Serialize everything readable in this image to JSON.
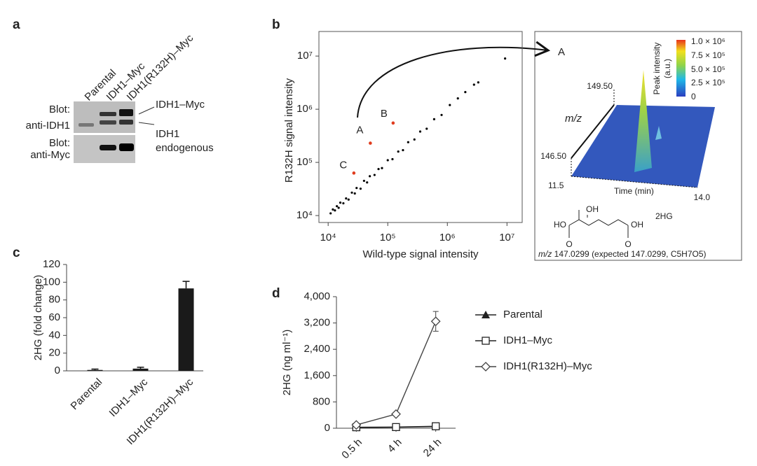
{
  "panel_labels": [
    "a",
    "b",
    "c",
    "d"
  ],
  "blot": {
    "lanes": [
      "Parental",
      "IDH1–Myc",
      "IDH1(R132H)–Myc"
    ],
    "rows": [
      [
        "Blot:",
        "anti-IDH1"
      ],
      [
        "Blot:",
        "anti-Myc"
      ]
    ],
    "bands": [
      [
        "IDH1–Myc"
      ],
      [
        "IDH1",
        "endogenous"
      ]
    ]
  },
  "spectrum": {
    "target": "A",
    "colorbar_title": [
      "Peak intensity",
      "(a.u.)"
    ],
    "colorbar_ticks": [
      "1.0 × 10⁶",
      "7.5 × 10⁵",
      "5.0 × 10⁵",
      "2.5 × 10⁵",
      "0"
    ],
    "mz_axis": [
      "149.50",
      "m/z",
      "146.50"
    ],
    "time_axis": [
      "11.5",
      "Time (min)",
      "14.0"
    ],
    "structure": [
      "HO",
      "OH",
      "OH",
      "O",
      "O",
      "2HG"
    ],
    "caption": [
      "m/z",
      " 147.0299 (expected 147.0299, C5H7O5)"
    ]
  },
  "chart_data": [
    {
      "type": "scatter",
      "xlabel": "Wild-type signal intensity",
      "ylabel": "R132H signal intensity",
      "xscale": "log",
      "yscale": "log",
      "xlim": [
        7000,
        18000000
      ],
      "ylim": [
        7400,
        29000000
      ],
      "xticks": [
        {
          "value": 10000,
          "label": "10⁴"
        },
        {
          "value": 100000,
          "label": "10⁵"
        },
        {
          "value": 1000000,
          "label": "10⁶"
        },
        {
          "value": 10000000,
          "label": "10⁷"
        }
      ],
      "yticks": [
        {
          "value": 10000,
          "label": "10⁴"
        },
        {
          "value": 100000,
          "label": "10⁵"
        },
        {
          "value": 1000000,
          "label": "10⁶"
        },
        {
          "value": 10000000,
          "label": "10⁷"
        }
      ],
      "series": [
        {
          "color": "#000000",
          "x": [
            11000,
            12000,
            13000,
            14000,
            15000,
            16000,
            18000,
            20000,
            22000,
            25000,
            28000,
            30000,
            35000,
            40000,
            45000,
            50000,
            60000,
            70000,
            80000,
            100000,
            120000,
            150000,
            180000,
            220000,
            280000,
            350000,
            450000,
            600000,
            800000,
            1100000,
            1500000,
            2000000,
            2800000,
            3300000,
            9300000
          ],
          "values": [
            11000,
            13000,
            12500,
            15000,
            14000,
            17500,
            17000,
            21000,
            20000,
            27000,
            26000,
            33000,
            32000,
            45000,
            42000,
            55000,
            58000,
            75000,
            78000,
            110000,
            115000,
            160000,
            170000,
            240000,
            270000,
            380000,
            430000,
            650000,
            780000,
            1200000,
            1600000,
            2100000,
            2900000,
            3200000,
            9000000
          ]
        },
        {
          "color": "#e03c1e",
          "x": [
            51000,
            123000,
            27000
          ],
          "values": [
            230000,
            550000,
            63000
          ],
          "labels": [
            "A",
            "B",
            "C"
          ]
        }
      ]
    },
    {
      "type": "bar",
      "categories": [
        "Parental",
        "IDH1–Myc",
        "IDH1(R132H)–Myc"
      ],
      "values": [
        1,
        2.5,
        93
      ],
      "errors": [
        1,
        1.5,
        8
      ],
      "color": "#1a1a1a",
      "ylabel": "2HG (fold change)",
      "ylim": [
        0,
        120
      ],
      "yticks": [
        0,
        20,
        40,
        60,
        80,
        100,
        120
      ]
    },
    {
      "type": "line",
      "categories": [
        "0.5 h",
        "4 h",
        "24 h"
      ],
      "ylabel": "2HG (ng ml⁻¹)",
      "ylim": [
        0,
        4000
      ],
      "yticks": [
        0,
        800,
        {
          "value": 1600,
          "label": "1,600"
        },
        {
          "value": 2400,
          "label": "2,400"
        },
        {
          "value": 3200,
          "label": "3,200"
        },
        {
          "value": 4000,
          "label": "4,000"
        }
      ],
      "series": [
        {
          "name": "Parental",
          "color": "#222222",
          "marker": "triangle",
          "values": [
            20,
            30,
            50
          ]
        },
        {
          "name": "IDH1–Myc",
          "color": "#222222",
          "marker": "square",
          "values": [
            30,
            35,
            60
          ]
        },
        {
          "name": "IDH1(R132H)–Myc",
          "color": "#444444",
          "marker": "diamond",
          "values": [
            100,
            430,
            3250
          ],
          "errors": [
            30,
            40,
            300
          ]
        }
      ]
    }
  ]
}
